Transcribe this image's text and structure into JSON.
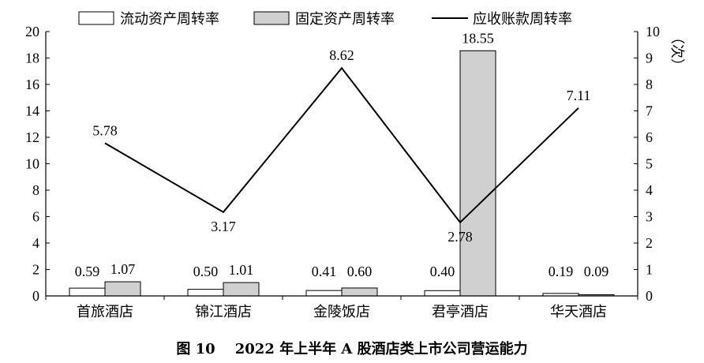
{
  "chart_data": {
    "type": "bar",
    "title": "图 10    2022 年上半年 A 股酒店类上市公司营运能力",
    "categories": [
      "首旅酒店",
      "锦江酒店",
      "金陵饭店",
      "君亭酒店",
      "华天酒店"
    ],
    "series": [
      {
        "name": "流动资产周转率",
        "type": "bar",
        "axis": "left",
        "color": "#ffffff",
        "values": [
          0.59,
          0.5,
          0.41,
          0.4,
          0.19
        ]
      },
      {
        "name": "固定资产周转率",
        "type": "bar",
        "axis": "left",
        "color": "#d0d0d0",
        "values": [
          1.07,
          1.01,
          0.6,
          18.55,
          0.09
        ]
      },
      {
        "name": "应收账款周转率",
        "type": "line",
        "axis": "right",
        "color": "#000000",
        "values": [
          5.78,
          3.17,
          8.62,
          2.78,
          7.11
        ]
      }
    ],
    "data_labels": [
      [
        "0.59",
        "0.50",
        "0.41",
        "0.40",
        "0.19"
      ],
      [
        "1.07",
        "1.01",
        "0.60",
        "18.55",
        "0.09"
      ],
      [
        "5.78",
        "3.17",
        "8.62",
        "2.78",
        "7.11"
      ]
    ],
    "left_axis": {
      "ylim": [
        0,
        20
      ],
      "ticks": [
        "0",
        "2",
        "4",
        "6",
        "8",
        "10",
        "12",
        "14",
        "16",
        "18",
        "20"
      ]
    },
    "right_axis": {
      "ylim": [
        0,
        10
      ],
      "ticks": [
        "0",
        "1",
        "2",
        "3",
        "4",
        "5",
        "6",
        "7",
        "8",
        "9",
        "10"
      ],
      "unit": "（次）"
    },
    "legend_position": "top",
    "grid": false
  }
}
